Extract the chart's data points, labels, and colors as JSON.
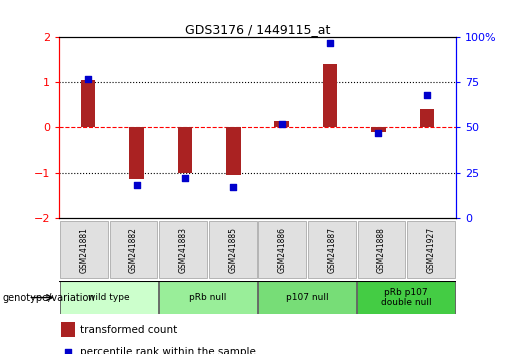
{
  "title": "GDS3176 / 1449115_at",
  "samples": [
    "GSM241881",
    "GSM241882",
    "GSM241883",
    "GSM241885",
    "GSM241886",
    "GSM241887",
    "GSM241888",
    "GSM241927"
  ],
  "bar_values": [
    1.05,
    -1.15,
    -1.0,
    -1.05,
    0.15,
    1.4,
    -0.1,
    0.4
  ],
  "dot_values": [
    77,
    18,
    22,
    17,
    52,
    97,
    47,
    68
  ],
  "ylim_left": [
    -2,
    2
  ],
  "ylim_right": [
    0,
    100
  ],
  "yticks_left": [
    -2,
    -1,
    0,
    1,
    2
  ],
  "yticks_right": [
    0,
    25,
    50,
    75,
    100
  ],
  "hlines_dotted": [
    1.0,
    -1.0
  ],
  "hline_dashed": 0.0,
  "bar_color": "#aa2222",
  "dot_color": "#0000cc",
  "groups": [
    {
      "label": "wild type",
      "start": 0,
      "end": 2,
      "color": "#ccffcc"
    },
    {
      "label": "pRb null",
      "start": 2,
      "end": 4,
      "color": "#99ee99"
    },
    {
      "label": "p107 null",
      "start": 4,
      "end": 6,
      "color": "#77dd77"
    },
    {
      "label": "pRb p107\ndouble null",
      "start": 6,
      "end": 8,
      "color": "#44cc44"
    }
  ],
  "legend_bar_label": "transformed count",
  "legend_dot_label": "percentile rank within the sample",
  "genotype_label": "genotype/variation",
  "bg_color": "#ffffff"
}
